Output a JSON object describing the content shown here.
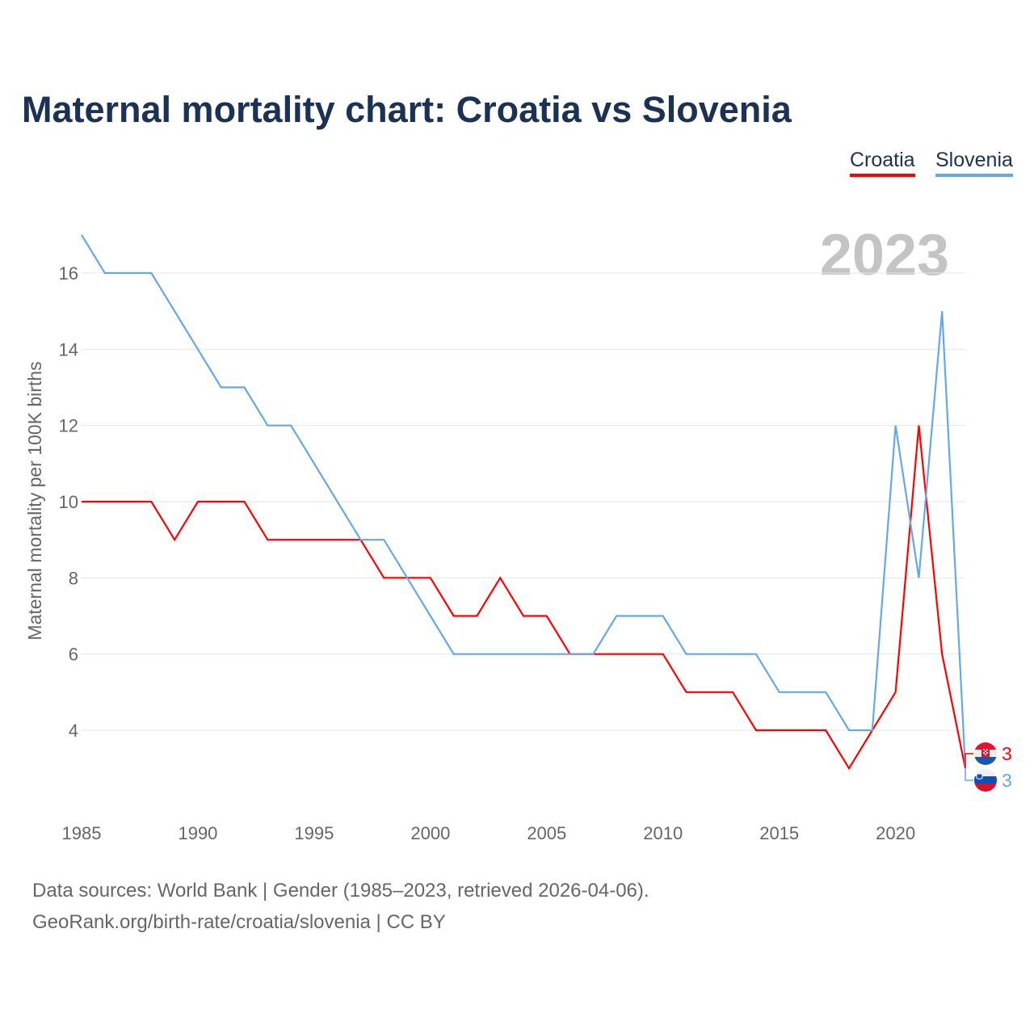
{
  "title": "Maternal mortality chart: Croatia vs Slovenia",
  "legend": [
    "Croatia",
    "Slovenia"
  ],
  "source_line1": "Data sources: World Bank | Gender (1985–2023, retrieved 2026-04-06).",
  "source_line2": "GeoRank.org/birth-rate/croatia/slovenia | CC BY",
  "colors": {
    "croatia": "#ff0000",
    "slovenia": "#64a8ea",
    "title": "#1b3254"
  },
  "chart_data": {
    "type": "line",
    "title": "Maternal mortality chart: Croatia vs Slovenia",
    "ylabel": "Maternal mortality per 100K births",
    "xlabel": "",
    "year_watermark": "2023",
    "x": [
      1985,
      1986,
      1987,
      1988,
      1989,
      1990,
      1991,
      1992,
      1993,
      1994,
      1995,
      1996,
      1997,
      1998,
      1999,
      2000,
      2001,
      2002,
      2003,
      2004,
      2005,
      2006,
      2007,
      2008,
      2009,
      2010,
      2011,
      2012,
      2013,
      2014,
      2015,
      2016,
      2017,
      2018,
      2019,
      2020,
      2021,
      2022,
      2023
    ],
    "xticks": [
      1985,
      1990,
      1995,
      2000,
      2005,
      2010,
      2015,
      2020
    ],
    "yticks": [
      4,
      6,
      8,
      10,
      12,
      14,
      16
    ],
    "xlim": [
      1985,
      2023
    ],
    "ylim": [
      2,
      17.5
    ],
    "legend_position": "top-right",
    "series": [
      {
        "name": "Croatia",
        "color": "#ff0000",
        "end_label": "3",
        "values": [
          10,
          10,
          10,
          10,
          9,
          10,
          10,
          10,
          9,
          9,
          9,
          9,
          9,
          8,
          8,
          8,
          7,
          7,
          8,
          7,
          7,
          6,
          6,
          6,
          6,
          6,
          5,
          5,
          5,
          4,
          4,
          4,
          4,
          3,
          4,
          5,
          12,
          6,
          3
        ]
      },
      {
        "name": "Slovenia",
        "color": "#64a8ea",
        "end_label": "3",
        "values": [
          17,
          16,
          16,
          16,
          15,
          14,
          13,
          13,
          12,
          12,
          11,
          10,
          9,
          9,
          8,
          7,
          6,
          6,
          6,
          6,
          6,
          6,
          6,
          7,
          7,
          7,
          6,
          6,
          6,
          6,
          5,
          5,
          5,
          4,
          4,
          12,
          8,
          15,
          3
        ]
      }
    ]
  }
}
